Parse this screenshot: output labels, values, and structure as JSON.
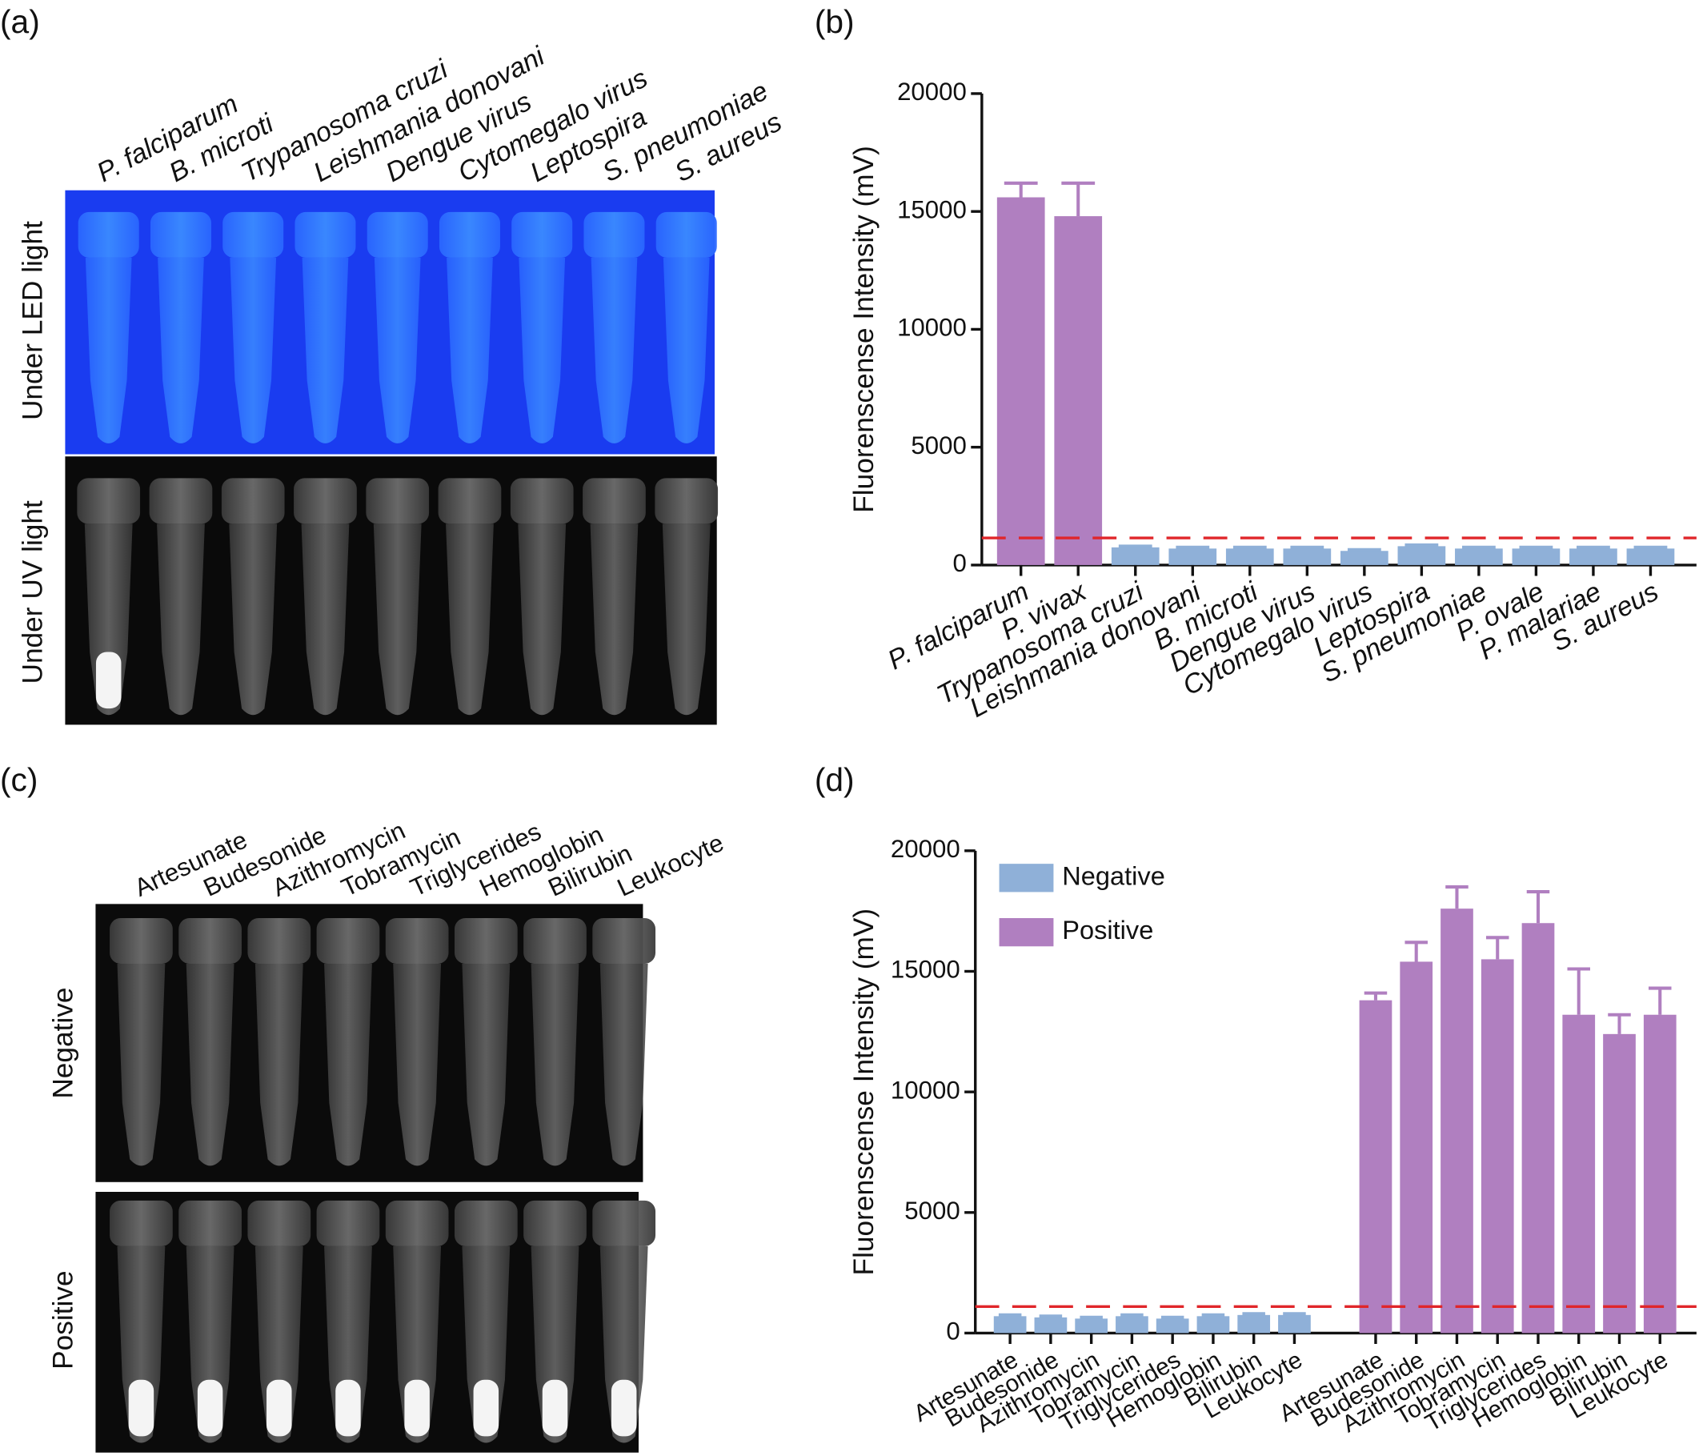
{
  "panels": {
    "a": {
      "label": "(a)",
      "tubes": [
        "P. falciparum",
        "B. microti",
        "Trypanosoma cruzi",
        "Leishmania donovani",
        "Dengue virus",
        "Cytomegalo virus",
        "Leptospira",
        "S. pneumoniae",
        "S. aureus"
      ],
      "rows": [
        "Under LED light",
        "Under UV light"
      ]
    },
    "c": {
      "label": "(c)",
      "tubes": [
        "Artesunate",
        "Budesonide",
        "Azithromycin",
        "Tobramycin",
        "Triglycerides",
        "Hemoglobin",
        "Bilirubin",
        "Leukocyte"
      ],
      "rows": [
        "Negative",
        "Positive"
      ]
    }
  },
  "chart_data": [
    {
      "type": "bar",
      "label": "(b)",
      "ylabel": "Fluorenscense Intensity (mV)",
      "categories": [
        "P. falciparum",
        "P. vivax",
        "Trypanosoma cruzi",
        "Leishmania donovani",
        "B. microti",
        "Dengue virus",
        "Cytomegalo virus",
        "Leptospira",
        "S. pneumoniae",
        "P. ovale",
        "P. malariae",
        "S. aureus"
      ],
      "values": [
        15600,
        14800,
        750,
        700,
        700,
        700,
        600,
        800,
        700,
        700,
        700,
        700
      ],
      "errors": [
        600,
        1400,
        50,
        50,
        50,
        50,
        50,
        50,
        50,
        50,
        50,
        50
      ],
      "colors": [
        "#b07fc0",
        "#b07fc0",
        "#8fb0d8",
        "#8fb0d8",
        "#8fb0d8",
        "#8fb0d8",
        "#8fb0d8",
        "#8fb0d8",
        "#8fb0d8",
        "#8fb0d8",
        "#8fb0d8",
        "#8fb0d8"
      ],
      "threshold": 1150,
      "threshold_color": "#e0262a",
      "ylim": [
        0,
        20000
      ],
      "yticks": [
        0,
        5000,
        10000,
        15000,
        20000
      ]
    },
    {
      "type": "grouped",
      "label": "(d)",
      "ylabel": "Fluorenscense Intensity (mV)",
      "categories": [
        "Artesunate",
        "Budesonide",
        "Azithromycin",
        "Tobramycin",
        "Triglycerides",
        "Hemoglobin",
        "Bilirubin",
        "Leukocyte",
        "Artesunate",
        "Budesonide",
        "Azithromycin",
        "Tobramycin",
        "Triglycerides",
        "Hemoglobin",
        "Bilirubin",
        "Leukocyte"
      ],
      "series": [
        {
          "name": "Negative",
          "color": "#8fb0d8",
          "values": [
            700,
            650,
            600,
            700,
            600,
            700,
            750,
            750,
            null,
            null,
            null,
            null,
            null,
            null,
            null,
            null
          ],
          "errors": [
            50,
            50,
            50,
            50,
            50,
            50,
            50,
            50,
            null,
            null,
            null,
            null,
            null,
            null,
            null,
            null
          ]
        },
        {
          "name": "Positive",
          "color": "#b07fc0",
          "values": [
            null,
            null,
            null,
            null,
            null,
            null,
            null,
            null,
            13800,
            15400,
            17600,
            15500,
            17000,
            13200,
            12400,
            13200
          ],
          "errors": [
            null,
            null,
            null,
            null,
            null,
            null,
            null,
            null,
            300,
            800,
            900,
            900,
            1300,
            1900,
            800,
            1100
          ]
        }
      ],
      "threshold": 1100,
      "threshold_color": "#e0262a",
      "ylim": [
        0,
        20000
      ],
      "yticks": [
        0,
        5000,
        10000,
        15000,
        20000
      ]
    }
  ]
}
